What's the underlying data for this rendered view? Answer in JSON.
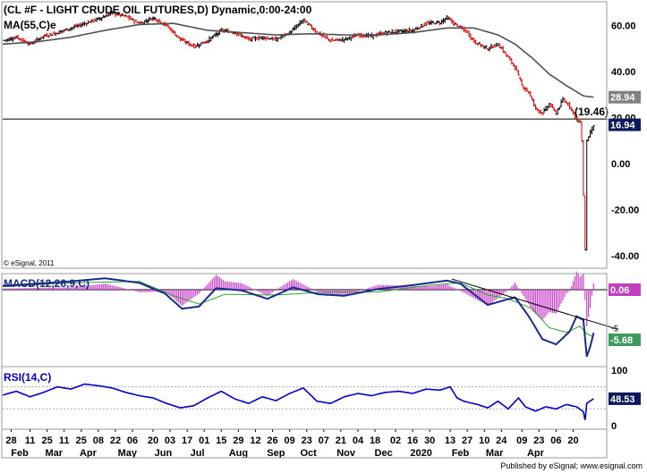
{
  "header": {
    "title": "(CL #F - LIGHT CRUDE OIL FUTURES,D) Dynamic,0:00-24:00",
    "ma_label": "MA(55,C)e",
    "watermark": "© eSignal, 2011",
    "footer": "Published by eSignal; www.esignal.com"
  },
  "colors": {
    "up_bar": "#000000",
    "down_bar": "#e00000",
    "ma": "#505050",
    "macd": "#1a2a8c",
    "macd_signal": "#2ea02e",
    "macd_hist": "#cc44cc",
    "rsi": "#0000cc",
    "badge_dark": "#0a1a5a",
    "badge_gray": "#808080",
    "badge_green": "#3c9a5a",
    "badge_magenta": "#c040c0"
  },
  "chart_data": [
    {
      "type": "line",
      "name": "price_panel",
      "ylim": [
        -45,
        70
      ],
      "yticks": [
        60,
        40,
        20,
        0,
        -20,
        -40
      ],
      "ytick_labels": [
        "60.00",
        "40.00",
        "20.00",
        "0.00",
        "-20.00",
        "-40.00"
      ],
      "ma_last_label": "28.94",
      "ma_last_value": 28.94,
      "last_price_label": "16.94",
      "last_price_value": 16.94,
      "annotation": "(19.46)",
      "annotation_value": 19.46,
      "horizontal_line_value": 19.46,
      "x_index_range": [
        0,
        340
      ],
      "price": [
        {
          "x": 0,
          "c": 53.5
        },
        {
          "x": 8,
          "c": 55
        },
        {
          "x": 16,
          "c": 52
        },
        {
          "x": 24,
          "c": 55.5
        },
        {
          "x": 32,
          "c": 57
        },
        {
          "x": 40,
          "c": 59
        },
        {
          "x": 48,
          "c": 61
        },
        {
          "x": 56,
          "c": 63
        },
        {
          "x": 64,
          "c": 65.5
        },
        {
          "x": 72,
          "c": 64
        },
        {
          "x": 80,
          "c": 61
        },
        {
          "x": 88,
          "c": 63.5
        },
        {
          "x": 96,
          "c": 60
        },
        {
          "x": 104,
          "c": 54
        },
        {
          "x": 112,
          "c": 51
        },
        {
          "x": 120,
          "c": 53.5
        },
        {
          "x": 128,
          "c": 58
        },
        {
          "x": 136,
          "c": 57
        },
        {
          "x": 144,
          "c": 54
        },
        {
          "x": 152,
          "c": 55
        },
        {
          "x": 160,
          "c": 54
        },
        {
          "x": 168,
          "c": 57
        },
        {
          "x": 176,
          "c": 62.5
        },
        {
          "x": 184,
          "c": 57
        },
        {
          "x": 192,
          "c": 53.5
        },
        {
          "x": 200,
          "c": 54
        },
        {
          "x": 208,
          "c": 56
        },
        {
          "x": 216,
          "c": 55.5
        },
        {
          "x": 224,
          "c": 57
        },
        {
          "x": 232,
          "c": 57.5
        },
        {
          "x": 240,
          "c": 58
        },
        {
          "x": 248,
          "c": 61
        },
        {
          "x": 256,
          "c": 61.5
        },
        {
          "x": 260,
          "c": 63.5
        },
        {
          "x": 264,
          "c": 61
        },
        {
          "x": 268,
          "c": 59
        },
        {
          "x": 272,
          "c": 57
        },
        {
          "x": 276,
          "c": 53
        },
        {
          "x": 280,
          "c": 51.5
        },
        {
          "x": 284,
          "c": 50
        },
        {
          "x": 290,
          "c": 52
        },
        {
          "x": 296,
          "c": 46
        },
        {
          "x": 300,
          "c": 42
        },
        {
          "x": 304,
          "c": 34
        },
        {
          "x": 308,
          "c": 31
        },
        {
          "x": 312,
          "c": 24
        },
        {
          "x": 316,
          "c": 22
        },
        {
          "x": 320,
          "c": 26
        },
        {
          "x": 324,
          "c": 22
        },
        {
          "x": 328,
          "c": 28
        },
        {
          "x": 332,
          "c": 25
        },
        {
          "x": 334,
          "c": 22
        },
        {
          "x": 336,
          "c": 19
        },
        {
          "x": 338,
          "c": 18
        },
        {
          "x": 339,
          "c": 10
        },
        {
          "x": 340,
          "c": -14
        },
        {
          "x": 341,
          "c": -37
        },
        {
          "x": 342,
          "c": 10
        },
        {
          "x": 344,
          "c": 14
        },
        {
          "x": 346,
          "c": 16.94
        }
      ],
      "ma": [
        {
          "x": 0,
          "c": 52
        },
        {
          "x": 20,
          "c": 53
        },
        {
          "x": 40,
          "c": 55
        },
        {
          "x": 60,
          "c": 58
        },
        {
          "x": 80,
          "c": 60.5
        },
        {
          "x": 100,
          "c": 61
        },
        {
          "x": 120,
          "c": 58
        },
        {
          "x": 140,
          "c": 57
        },
        {
          "x": 160,
          "c": 56
        },
        {
          "x": 180,
          "c": 56.5
        },
        {
          "x": 200,
          "c": 56
        },
        {
          "x": 220,
          "c": 56
        },
        {
          "x": 240,
          "c": 57
        },
        {
          "x": 260,
          "c": 59
        },
        {
          "x": 276,
          "c": 59
        },
        {
          "x": 290,
          "c": 56
        },
        {
          "x": 300,
          "c": 52
        },
        {
          "x": 310,
          "c": 46
        },
        {
          "x": 320,
          "c": 39
        },
        {
          "x": 330,
          "c": 34
        },
        {
          "x": 340,
          "c": 29.5
        },
        {
          "x": 346,
          "c": 28.94
        }
      ]
    },
    {
      "type": "line",
      "name": "macd_panel",
      "label": "MACD(12,26,9,C)",
      "zero_label": "0.06",
      "value_label": "-5.68",
      "tick_mark": "-5",
      "ylim": [
        -10,
        2
      ],
      "macd": [
        {
          "x": 0,
          "v": 0.5
        },
        {
          "x": 20,
          "v": 0.8
        },
        {
          "x": 40,
          "v": 1.1
        },
        {
          "x": 60,
          "v": 1.5
        },
        {
          "x": 80,
          "v": 0.9
        },
        {
          "x": 95,
          "v": -0.5
        },
        {
          "x": 105,
          "v": -2.5
        },
        {
          "x": 115,
          "v": -2.2
        },
        {
          "x": 125,
          "v": 0.2
        },
        {
          "x": 140,
          "v": -0.1
        },
        {
          "x": 155,
          "v": -1.2
        },
        {
          "x": 170,
          "v": 0.3
        },
        {
          "x": 185,
          "v": -0.6
        },
        {
          "x": 200,
          "v": -0.8
        },
        {
          "x": 220,
          "v": 0.1
        },
        {
          "x": 240,
          "v": 0.6
        },
        {
          "x": 260,
          "v": 1.2
        },
        {
          "x": 268,
          "v": 0.8
        },
        {
          "x": 276,
          "v": -0.6
        },
        {
          "x": 284,
          "v": -2.0
        },
        {
          "x": 292,
          "v": -1.5
        },
        {
          "x": 300,
          "v": -1.0
        },
        {
          "x": 308,
          "v": -3.5
        },
        {
          "x": 316,
          "v": -6.5
        },
        {
          "x": 324,
          "v": -7.2
        },
        {
          "x": 332,
          "v": -5.5
        },
        {
          "x": 336,
          "v": -3.5
        },
        {
          "x": 340,
          "v": -4.0
        },
        {
          "x": 342,
          "v": -8.8
        },
        {
          "x": 344,
          "v": -7.5
        },
        {
          "x": 346,
          "v": -5.68
        }
      ],
      "signal": [
        {
          "x": 0,
          "v": 0.4
        },
        {
          "x": 40,
          "v": 0.9
        },
        {
          "x": 80,
          "v": 1.1
        },
        {
          "x": 100,
          "v": -0.8
        },
        {
          "x": 115,
          "v": -1.9
        },
        {
          "x": 130,
          "v": -0.6
        },
        {
          "x": 160,
          "v": -0.7
        },
        {
          "x": 190,
          "v": -0.3
        },
        {
          "x": 220,
          "v": -0.3
        },
        {
          "x": 250,
          "v": 0.6
        },
        {
          "x": 268,
          "v": 0.9
        },
        {
          "x": 284,
          "v": -0.7
        },
        {
          "x": 296,
          "v": -1.2
        },
        {
          "x": 310,
          "v": -2.5
        },
        {
          "x": 320,
          "v": -5.0
        },
        {
          "x": 330,
          "v": -5.6
        },
        {
          "x": 338,
          "v": -4.8
        },
        {
          "x": 342,
          "v": -5.8
        },
        {
          "x": 346,
          "v": -6.2
        }
      ],
      "trendline": [
        {
          "x": 263,
          "v": 1.4
        },
        {
          "x": 360,
          "v": -5.2
        }
      ]
    },
    {
      "type": "line",
      "name": "rsi_panel",
      "label": "RSI(14,C)",
      "ylim": [
        -5,
        105
      ],
      "yticks": [
        100,
        50,
        0
      ],
      "ytick_labels": [
        "100",
        "50",
        "0"
      ],
      "value_label": "48.53",
      "rsi": [
        {
          "x": 0,
          "v": 55
        },
        {
          "x": 8,
          "v": 62
        },
        {
          "x": 16,
          "v": 52
        },
        {
          "x": 24,
          "v": 60
        },
        {
          "x": 32,
          "v": 70
        },
        {
          "x": 40,
          "v": 66
        },
        {
          "x": 48,
          "v": 75
        },
        {
          "x": 56,
          "v": 72
        },
        {
          "x": 64,
          "v": 68
        },
        {
          "x": 72,
          "v": 60
        },
        {
          "x": 80,
          "v": 54
        },
        {
          "x": 88,
          "v": 50
        },
        {
          "x": 96,
          "v": 40
        },
        {
          "x": 104,
          "v": 32
        },
        {
          "x": 112,
          "v": 36
        },
        {
          "x": 120,
          "v": 50
        },
        {
          "x": 128,
          "v": 62
        },
        {
          "x": 136,
          "v": 48
        },
        {
          "x": 144,
          "v": 40
        },
        {
          "x": 152,
          "v": 52
        },
        {
          "x": 160,
          "v": 45
        },
        {
          "x": 168,
          "v": 58
        },
        {
          "x": 176,
          "v": 68
        },
        {
          "x": 184,
          "v": 44
        },
        {
          "x": 192,
          "v": 40
        },
        {
          "x": 200,
          "v": 52
        },
        {
          "x": 208,
          "v": 58
        },
        {
          "x": 216,
          "v": 54
        },
        {
          "x": 224,
          "v": 60
        },
        {
          "x": 232,
          "v": 62
        },
        {
          "x": 240,
          "v": 58
        },
        {
          "x": 248,
          "v": 66
        },
        {
          "x": 256,
          "v": 64
        },
        {
          "x": 262,
          "v": 70
        },
        {
          "x": 266,
          "v": 50
        },
        {
          "x": 270,
          "v": 44
        },
        {
          "x": 278,
          "v": 38
        },
        {
          "x": 284,
          "v": 32
        },
        {
          "x": 290,
          "v": 44
        },
        {
          "x": 296,
          "v": 30
        },
        {
          "x": 302,
          "v": 50
        },
        {
          "x": 306,
          "v": 34
        },
        {
          "x": 312,
          "v": 26
        },
        {
          "x": 318,
          "v": 34
        },
        {
          "x": 324,
          "v": 30
        },
        {
          "x": 330,
          "v": 38
        },
        {
          "x": 336,
          "v": 34
        },
        {
          "x": 340,
          "v": 25
        },
        {
          "x": 341,
          "v": 10
        },
        {
          "x": 342,
          "v": 40
        },
        {
          "x": 346,
          "v": 48.53
        }
      ]
    }
  ],
  "x_axis": {
    "day_labels": [
      {
        "x": 5,
        "t": "28"
      },
      {
        "x": 16,
        "t": "11"
      },
      {
        "x": 26,
        "t": "25"
      },
      {
        "x": 36,
        "t": "11"
      },
      {
        "x": 46,
        "t": "25"
      },
      {
        "x": 56,
        "t": "08"
      },
      {
        "x": 66,
        "t": "22"
      },
      {
        "x": 76,
        "t": "06"
      },
      {
        "x": 88,
        "t": "20"
      },
      {
        "x": 98,
        "t": "03"
      },
      {
        "x": 108,
        "t": "17"
      },
      {
        "x": 118,
        "t": "01"
      },
      {
        "x": 128,
        "t": "15"
      },
      {
        "x": 138,
        "t": "29"
      },
      {
        "x": 148,
        "t": "12"
      },
      {
        "x": 158,
        "t": "26"
      },
      {
        "x": 168,
        "t": "09"
      },
      {
        "x": 178,
        "t": "23"
      },
      {
        "x": 188,
        "t": "07"
      },
      {
        "x": 198,
        "t": "21"
      },
      {
        "x": 208,
        "t": "04"
      },
      {
        "x": 218,
        "t": "18"
      },
      {
        "x": 230,
        "t": "02"
      },
      {
        "x": 240,
        "t": "16"
      },
      {
        "x": 250,
        "t": "30"
      },
      {
        "x": 262,
        "t": "13"
      },
      {
        "x": 272,
        "t": "27"
      },
      {
        "x": 282,
        "t": "10"
      },
      {
        "x": 292,
        "t": "24"
      },
      {
        "x": 304,
        "t": "09"
      },
      {
        "x": 314,
        "t": "23"
      },
      {
        "x": 324,
        "t": "06"
      },
      {
        "x": 334,
        "t": "20"
      }
    ],
    "month_labels": [
      {
        "x": 10,
        "t": "Feb"
      },
      {
        "x": 30,
        "t": "Mar"
      },
      {
        "x": 50,
        "t": "Apr"
      },
      {
        "x": 73,
        "t": "May"
      },
      {
        "x": 94,
        "t": "Jun"
      },
      {
        "x": 114,
        "t": "Jul"
      },
      {
        "x": 138,
        "t": "Aug"
      },
      {
        "x": 160,
        "t": "Sep"
      },
      {
        "x": 179,
        "t": "Oct"
      },
      {
        "x": 201,
        "t": "Nov"
      },
      {
        "x": 223,
        "t": "Dec"
      },
      {
        "x": 245,
        "t": "2020"
      },
      {
        "x": 268,
        "t": "Feb"
      },
      {
        "x": 288,
        "t": "Mar"
      },
      {
        "x": 312,
        "t": "Apr"
      }
    ]
  }
}
